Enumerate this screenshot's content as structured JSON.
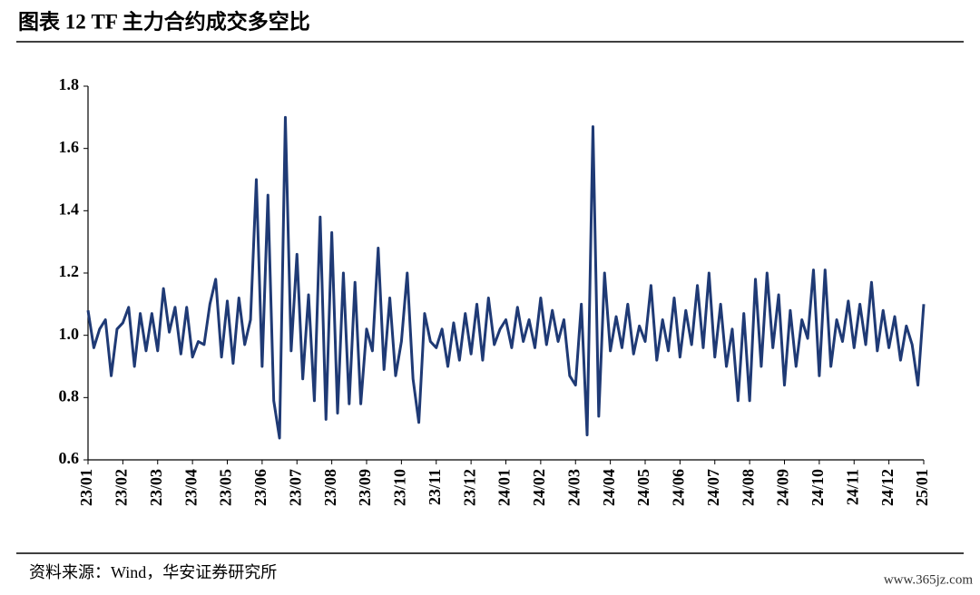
{
  "chart_data": {
    "type": "line",
    "title": "图表 12 TF 主力合约成交多空比",
    "source": "资料来源：Wind，华安证券研究所",
    "watermark": "www.365jz.com",
    "categories": [
      "23/01",
      null,
      null,
      null,
      null,
      null,
      "23/02",
      null,
      null,
      null,
      null,
      null,
      "23/03",
      null,
      null,
      null,
      null,
      null,
      "23/04",
      null,
      null,
      null,
      null,
      null,
      "23/05",
      null,
      null,
      null,
      null,
      null,
      "23/06",
      null,
      null,
      null,
      null,
      null,
      "23/07",
      null,
      null,
      null,
      null,
      null,
      "23/08",
      null,
      null,
      null,
      null,
      null,
      "23/09",
      null,
      null,
      null,
      null,
      null,
      "23/10",
      null,
      null,
      null,
      null,
      null,
      "23/11",
      null,
      null,
      null,
      null,
      null,
      "23/12",
      null,
      null,
      null,
      null,
      null,
      "24/01",
      null,
      null,
      null,
      null,
      null,
      "24/02",
      null,
      null,
      null,
      null,
      null,
      "24/03",
      null,
      null,
      null,
      null,
      null,
      "24/04",
      null,
      null,
      null,
      null,
      null,
      "24/05",
      null,
      null,
      null,
      null,
      null,
      "24/06",
      null,
      null,
      null,
      null,
      null,
      "24/07",
      null,
      null,
      null,
      null,
      null,
      "24/08",
      null,
      null,
      null,
      null,
      null,
      "24/09",
      null,
      null,
      null,
      null,
      null,
      "24/10",
      null,
      null,
      null,
      null,
      null,
      "24/11",
      null,
      null,
      null,
      null,
      null,
      "24/12",
      null,
      null,
      null,
      null,
      null,
      "25/01"
    ],
    "series": [
      {
        "name": "TF主力合约成交多空比",
        "color": "#1f3a75",
        "values": [
          1.08,
          0.96,
          1.02,
          1.05,
          0.87,
          1.02,
          1.04,
          1.09,
          0.9,
          1.07,
          0.95,
          1.07,
          0.95,
          1.15,
          1.01,
          1.09,
          0.94,
          1.09,
          0.93,
          0.98,
          0.97,
          1.1,
          1.18,
          0.93,
          1.11,
          0.91,
          1.12,
          0.97,
          1.05,
          1.5,
          0.9,
          1.45,
          0.79,
          0.67,
          1.7,
          0.95,
          1.26,
          0.86,
          1.13,
          0.79,
          1.38,
          0.73,
          1.33,
          0.75,
          1.2,
          0.78,
          1.17,
          0.78,
          1.02,
          0.95,
          1.28,
          0.89,
          1.12,
          0.87,
          0.98,
          1.2,
          0.86,
          0.72,
          1.07,
          0.98,
          0.96,
          1.02,
          0.9,
          1.04,
          0.92,
          1.07,
          0.94,
          1.1,
          0.92,
          1.12,
          0.97,
          1.02,
          1.05,
          0.96,
          1.09,
          0.98,
          1.05,
          0.96,
          1.12,
          0.97,
          1.08,
          0.98,
          1.05,
          0.87,
          0.84,
          1.1,
          0.68,
          1.67,
          0.74,
          1.2,
          0.95,
          1.06,
          0.96,
          1.1,
          0.94,
          1.03,
          0.98,
          1.16,
          0.92,
          1.05,
          0.95,
          1.12,
          0.93,
          1.08,
          0.97,
          1.16,
          0.96,
          1.2,
          0.93,
          1.1,
          0.9,
          1.02,
          0.79,
          1.07,
          0.79,
          1.18,
          0.9,
          1.2,
          0.96,
          1.13,
          0.84,
          1.08,
          0.9,
          1.05,
          0.99,
          1.21,
          0.87,
          1.21,
          0.9,
          1.05,
          0.98,
          1.11,
          0.96,
          1.1,
          0.97,
          1.17,
          0.95,
          1.08,
          0.96,
          1.06,
          0.92,
          1.03,
          0.97,
          0.84,
          1.1
        ]
      }
    ],
    "ylim": [
      0.6,
      1.8
    ],
    "yticks": [
      {
        "value": 0.6,
        "label": "0.6"
      },
      {
        "value": 0.8,
        "label": "0.8"
      },
      {
        "value": 1.0,
        "label": "1.0"
      },
      {
        "value": 1.2,
        "label": "1.2"
      },
      {
        "value": 1.4,
        "label": "1.4"
      },
      {
        "value": 1.6,
        "label": "1.6"
      },
      {
        "value": 1.8,
        "label": "1.8"
      }
    ],
    "grid": false
  }
}
